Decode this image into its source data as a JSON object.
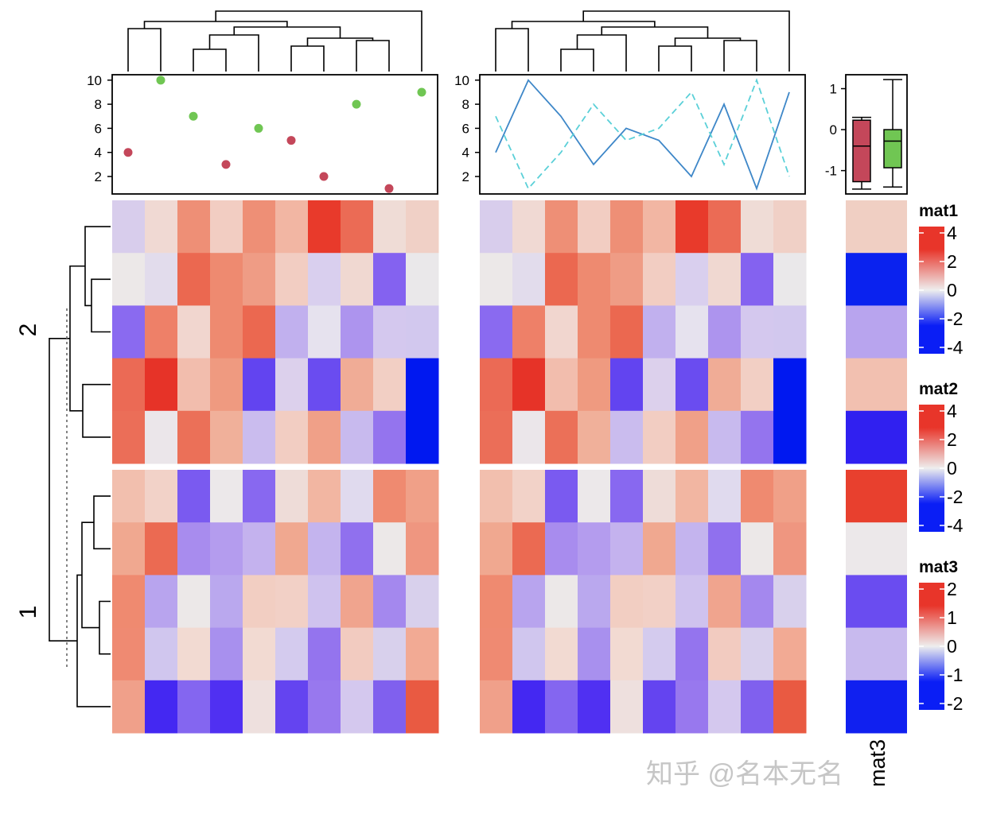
{
  "chart_data": {
    "type": "heatmap",
    "row_split_labels": [
      "2",
      "1"
    ],
    "column_label": "mat3",
    "matrices": {
      "mat1": {
        "groups": [
          [
            [
              "#d8cdec",
              "#f0d9d3",
              "#ee8f76",
              "#f2cdc2",
              "#ee8f76",
              "#f2b6a3",
              "#e83a2b",
              "#eb6b55",
              "#efdcd6",
              "#f0d0c6"
            ],
            [
              "#ece8e8",
              "#e2dcec",
              "#eb6850",
              "#ee8a70",
              "#ef9c85",
              "#f2cdc2",
              "#d9cfee",
              "#f0d8d1",
              "#8462f0",
              "#eae8ea"
            ],
            [
              "#8a6af0",
              "#ee8068",
              "#f1d6cf",
              "#ee8a70",
              "#eb6850",
              "#c1b0ee",
              "#e6e2ee",
              "#ad94ee",
              "#d4c8ee",
              "#d2c8ee"
            ],
            [
              "#eb6a55",
              "#e63328",
              "#f2bdad",
              "#ef9a80",
              "#6244f0",
              "#dcd0ec",
              "#6a4cf0",
              "#f0ac96",
              "#f2cfc4",
              "#0018f0"
            ],
            [
              "#eb6e58",
              "#ebe6ea",
              "#eb7058",
              "#f0b09a",
              "#cabcee",
              "#f2cdc2",
              "#f0a088",
              "#c8baee",
              "#9474ee",
              "#0018f0"
            ]
          ],
          [
            [
              "#f2bfae",
              "#f2d2c8",
              "#7a5af0",
              "#ece8ea",
              "#8868f0",
              "#eedcd8",
              "#f2b6a2",
              "#e0daee",
              "#ef8a70",
              "#f0a088"
            ],
            [
              "#f0a890",
              "#eb6a52",
              "#a88cee",
              "#b49cee",
              "#c4b2ee",
              "#f0a890",
              "#c4b4ee",
              "#9070ee",
              "#ece8e8",
              "#ef9680"
            ],
            [
              "#ef8a70",
              "#b8a4ee",
              "#ece8e8",
              "#baa8ee",
              "#f2cec2",
              "#f2d0c6",
              "#cfc2ee",
              "#f0a48e",
              "#a488ee",
              "#d8d0ec"
            ],
            [
              "#ef8a72",
              "#d0c6ee",
              "#f2dad2",
              "#a890ee",
              "#f2dad2",
              "#d4cbee",
              "#9474ee",
              "#f2cbc0",
              "#d8d0ec",
              "#f2aa94"
            ],
            [
              "#f0a08a",
              "#4428f2",
              "#8466f0",
              "#5030f2",
              "#eee0de",
              "#6444f0",
              "#9878ee",
              "#d4c8ee",
              "#8060ee",
              "#e95a42"
            ]
          ]
        ]
      },
      "mat3": {
        "groups": [
          [
            "#f0cfc3",
            "#0a22ef",
            "#b8a4ee",
            "#f2c0b0",
            "#3020f0"
          ],
          [
            "#e8402e",
            "#ece8ea",
            "#6a4cf0",
            "#c8baee",
            "#1020f0"
          ]
        ]
      }
    },
    "top_annotation_scatter": {
      "type": "scatter",
      "values": [
        4,
        10,
        7,
        3,
        6,
        5,
        2,
        8,
        1,
        9
      ],
      "point_colors": [
        "#c4475a",
        "#70c653",
        "#70c653",
        "#c4475a",
        "#70c653",
        "#c4475a",
        "#c4475a",
        "#70c653",
        "#c4475a",
        "#70c653"
      ],
      "yticks": [
        "10",
        "8",
        "6",
        "4",
        "2"
      ],
      "ylim": [
        0.55,
        10.45
      ]
    },
    "top_annotation_lines": {
      "type": "line",
      "series": [
        {
          "values": [
            4,
            10,
            7,
            3,
            6,
            5,
            2,
            8,
            1,
            9
          ],
          "color": "#3e87c8",
          "style": "solid"
        },
        {
          "values": [
            7,
            1,
            4,
            8,
            5,
            6,
            9,
            3,
            10,
            2
          ],
          "color": "#5bd0d8",
          "style": "dashed"
        }
      ],
      "yticks": [
        "10",
        "8",
        "6",
        "4",
        "2"
      ],
      "ylim": [
        0.55,
        10.45
      ]
    },
    "top_annotation_boxplot": {
      "type": "boxplot",
      "boxes": [
        {
          "min": -1.45,
          "q1": -1.27,
          "median": -0.4,
          "q3": 0.23,
          "max": 0.3,
          "color": "#c4475a"
        },
        {
          "min": -1.4,
          "q1": -0.93,
          "median": -0.28,
          "q3": 0.0,
          "max": 1.22,
          "color": "#70c653"
        }
      ],
      "yticks": [
        "1",
        "0",
        "-1"
      ],
      "ylim": [
        -1.57,
        1.34
      ]
    },
    "legends": [
      {
        "title": "mat1",
        "ticks": [
          "4",
          "2",
          "0",
          "-2",
          "-4"
        ]
      },
      {
        "title": "mat2",
        "ticks": [
          "4",
          "2",
          "0",
          "-2",
          "-4"
        ]
      },
      {
        "title": "mat3",
        "ticks": [
          "2",
          "1",
          "0",
          "-1",
          "-2"
        ]
      }
    ],
    "colors": {
      "high": "#e8352a",
      "mid": "#eeeeee",
      "low": "#0a1ef5"
    }
  },
  "watermark": "知乎 @名本无名"
}
